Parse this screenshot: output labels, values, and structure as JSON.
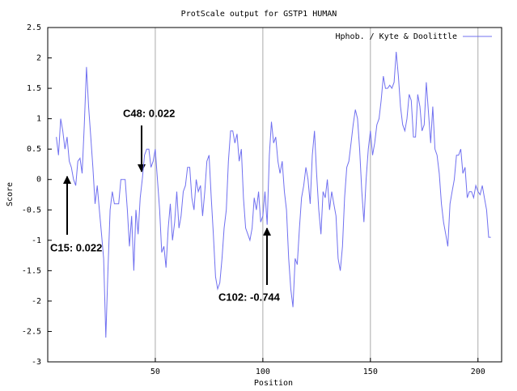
{
  "chart_data": {
    "type": "line",
    "title": "ProtScale output for GSTP1 HUMAN",
    "xlabel": "Position",
    "ylabel": "Score",
    "xlim": [
      0,
      211
    ],
    "ylim": [
      -3,
      2.5
    ],
    "xticks": [
      50,
      100,
      150,
      200
    ],
    "yticks": [
      -3,
      -2.5,
      -2,
      -1.5,
      -1,
      -0.5,
      0,
      0.5,
      1,
      1.5,
      2,
      2.5
    ],
    "grid": "x",
    "legend": "upper right",
    "series": [
      {
        "name": "Hphob. / Kyte & Doolittle",
        "color": "#7070f0",
        "x": [
          4,
          5,
          6,
          7,
          8,
          9,
          10,
          11,
          12,
          13,
          14,
          15,
          16,
          17,
          18,
          19,
          20,
          21,
          22,
          23,
          24,
          25,
          26,
          27,
          28,
          29,
          30,
          31,
          32,
          33,
          34,
          35,
          36,
          37,
          38,
          39,
          40,
          41,
          42,
          43,
          44,
          45,
          46,
          47,
          48,
          49,
          50,
          51,
          52,
          53,
          54,
          55,
          56,
          57,
          58,
          59,
          60,
          61,
          62,
          63,
          64,
          65,
          66,
          67,
          68,
          69,
          70,
          71,
          72,
          73,
          74,
          75,
          76,
          77,
          78,
          79,
          80,
          81,
          82,
          83,
          84,
          85,
          86,
          87,
          88,
          89,
          90,
          91,
          92,
          93,
          94,
          95,
          96,
          97,
          98,
          99,
          100,
          101,
          102,
          103,
          104,
          105,
          106,
          107,
          108,
          109,
          110,
          111,
          112,
          113,
          114,
          115,
          116,
          117,
          118,
          119,
          120,
          121,
          122,
          123,
          124,
          125,
          126,
          127,
          128,
          129,
          130,
          131,
          132,
          133,
          134,
          135,
          136,
          137,
          138,
          139,
          140,
          141,
          142,
          143,
          144,
          145,
          146,
          147,
          148,
          149,
          150,
          151,
          152,
          153,
          154,
          155,
          156,
          157,
          158,
          159,
          160,
          161,
          162,
          163,
          164,
          165,
          166,
          167,
          168,
          169,
          170,
          171,
          172,
          173,
          174,
          175,
          176,
          177,
          178,
          179,
          180,
          181,
          182,
          183,
          184,
          185,
          186,
          187,
          188,
          189,
          190,
          191,
          192,
          193,
          194,
          195,
          196,
          197,
          198,
          199,
          200,
          201,
          202,
          203,
          204,
          205,
          206
        ],
        "values": [
          0.7,
          0.4,
          1.0,
          0.8,
          0.5,
          0.7,
          0.3,
          0.2,
          0.0,
          -0.1,
          0.3,
          0.35,
          0.1,
          0.9,
          1.85,
          1.2,
          0.7,
          0.2,
          -0.4,
          -0.1,
          -0.5,
          -0.9,
          -1.3,
          -2.6,
          -1.5,
          -0.5,
          -0.2,
          -0.4,
          -0.4,
          -0.4,
          0.0,
          0.0,
          0.0,
          -0.5,
          -1.1,
          -0.6,
          -1.5,
          -0.5,
          -0.9,
          -0.3,
          0.02,
          0.4,
          0.5,
          0.5,
          0.2,
          0.3,
          0.5,
          0.0,
          -0.5,
          -1.2,
          -1.1,
          -1.45,
          -0.8,
          -0.4,
          -1.0,
          -0.7,
          -0.2,
          -0.8,
          -0.6,
          -0.2,
          -0.1,
          0.2,
          0.2,
          -0.3,
          -0.5,
          0.0,
          -0.2,
          -0.1,
          -0.6,
          -0.2,
          0.3,
          0.4,
          -0.3,
          -0.9,
          -1.6,
          -1.8,
          -1.7,
          -1.3,
          -0.8,
          -0.5,
          0.3,
          0.8,
          0.8,
          0.6,
          0.75,
          0.3,
          0.5,
          -0.3,
          -0.8,
          -0.9,
          -1.0,
          -0.8,
          -0.3,
          -0.5,
          -0.2,
          -0.7,
          -0.6,
          -0.2,
          -0.744,
          0.4,
          0.95,
          0.6,
          0.7,
          0.3,
          0.1,
          0.3,
          -0.2,
          -0.5,
          -1.3,
          -1.8,
          -2.1,
          -1.3,
          -1.4,
          -0.8,
          -0.3,
          -0.1,
          0.2,
          0.0,
          -0.4,
          0.4,
          0.8,
          0.1,
          -0.5,
          -0.9,
          -0.2,
          -0.3,
          0.0,
          -0.5,
          -0.2,
          -0.4,
          -0.6,
          -1.3,
          -1.5,
          -1.1,
          -0.3,
          0.2,
          0.3,
          0.6,
          0.9,
          1.15,
          1.0,
          0.5,
          -0.2,
          -0.7,
          0.0,
          0.5,
          0.8,
          0.4,
          0.6,
          0.9,
          1.0,
          1.3,
          1.7,
          1.5,
          1.5,
          1.55,
          1.5,
          1.6,
          2.1,
          1.7,
          1.2,
          0.9,
          0.8,
          1.0,
          1.4,
          1.3,
          0.7,
          0.7,
          1.4,
          1.2,
          0.8,
          0.9,
          1.6,
          1.1,
          0.6,
          1.2,
          0.5,
          0.4,
          0.1,
          -0.4,
          -0.7,
          -0.9,
          -1.1,
          -0.4,
          -0.2,
          0.0,
          0.4,
          0.4,
          0.5,
          0.1,
          0.2,
          -0.3,
          -0.2,
          -0.2,
          -0.3,
          -0.1,
          -0.2,
          -0.25,
          -0.1,
          -0.3,
          -0.5,
          -0.95,
          -0.95
        ]
      }
    ],
    "annotations": [
      {
        "text": "C48: 0.022"
      },
      {
        "text": "C15: 0.022"
      },
      {
        "text": "C102: -0.744"
      }
    ]
  }
}
